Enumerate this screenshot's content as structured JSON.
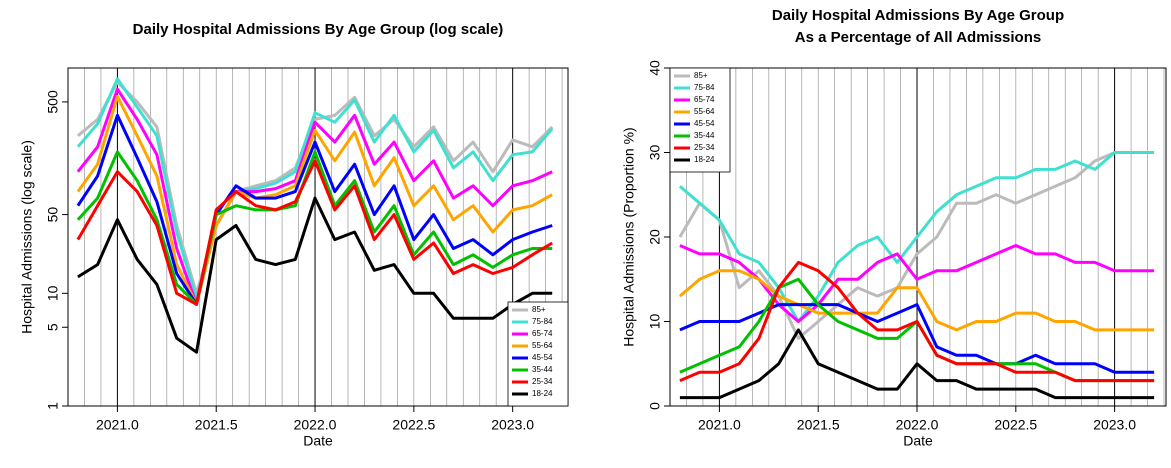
{
  "chart_data": [
    {
      "type": "line",
      "title": "Daily Hospital Admissions By Age Group (log scale)",
      "x_label": "Date",
      "y_label": "Hospital Admissions (log scale)",
      "log_scale": true,
      "grid": true,
      "legend": "bottom-right",
      "xlim": [
        2020.75,
        2023.28
      ],
      "xticks": [
        {
          "value": 2021,
          "label": "2021.0"
        },
        2021.5,
        {
          "value": 2022,
          "label": "2022.0"
        },
        2022.5,
        {
          "value": 2023,
          "label": "2023.0"
        }
      ],
      "ylim": [
        1,
        1000
      ],
      "yticks": [
        1,
        5,
        10,
        50,
        500
      ],
      "x": [
        2020.8,
        2020.9,
        2021.0,
        2021.1,
        2021.2,
        2021.3,
        2021.4,
        2021.5,
        2021.6,
        2021.7,
        2021.8,
        2021.9,
        2022.0,
        2022.1,
        2022.2,
        2022.3,
        2022.4,
        2022.5,
        2022.6,
        2022.7,
        2022.8,
        2022.9,
        2023.0,
        2023.1,
        2023.2
      ],
      "series": [
        {
          "name": "85+",
          "color": "#bbbbbb",
          "values": [
            250,
            350,
            750,
            500,
            300,
            40,
            10,
            40,
            80,
            90,
            100,
            130,
            350,
            380,
            550,
            250,
            350,
            200,
            300,
            150,
            220,
            120,
            230,
            200,
            300
          ]
        },
        {
          "name": "75-84",
          "color": "#40e0d0",
          "values": [
            200,
            320,
            800,
            450,
            250,
            35,
            9,
            40,
            80,
            85,
            95,
            120,
            400,
            330,
            520,
            220,
            380,
            180,
            280,
            130,
            180,
            100,
            170,
            180,
            290
          ]
        },
        {
          "name": "65-74",
          "color": "#ff00ff",
          "values": [
            120,
            200,
            650,
            350,
            170,
            25,
            8,
            40,
            80,
            80,
            85,
            100,
            330,
            220,
            380,
            140,
            220,
            100,
            150,
            70,
            90,
            60,
            90,
            100,
            120
          ]
        },
        {
          "name": "55-64",
          "color": "#ffa500",
          "values": [
            80,
            140,
            560,
            250,
            110,
            18,
            8,
            40,
            80,
            70,
            75,
            90,
            280,
            150,
            270,
            90,
            160,
            60,
            90,
            45,
            60,
            35,
            55,
            60,
            75
          ]
        },
        {
          "name": "45-54",
          "color": "#0000ff",
          "values": [
            60,
            110,
            380,
            160,
            65,
            15,
            8,
            50,
            90,
            70,
            70,
            80,
            220,
            80,
            140,
            50,
            90,
            30,
            50,
            25,
            30,
            22,
            30,
            35,
            40
          ]
        },
        {
          "name": "35-44",
          "color": "#00c000",
          "values": [
            45,
            70,
            180,
            100,
            45,
            12,
            8,
            50,
            60,
            55,
            55,
            60,
            180,
            60,
            100,
            35,
            60,
            22,
            35,
            18,
            22,
            17,
            22,
            25,
            25
          ]
        },
        {
          "name": "25-34",
          "color": "#ff0000",
          "values": [
            30,
            60,
            120,
            80,
            40,
            10,
            8,
            55,
            80,
            60,
            55,
            65,
            150,
            55,
            90,
            30,
            50,
            20,
            28,
            15,
            18,
            15,
            17,
            22,
            28
          ]
        },
        {
          "name": "18-24",
          "color": "#000000",
          "values": [
            14,
            18,
            45,
            20,
            12,
            4,
            3,
            30,
            40,
            20,
            18,
            20,
            70,
            30,
            35,
            16,
            18,
            10,
            10,
            6,
            6,
            6,
            8,
            10,
            10
          ]
        }
      ]
    },
    {
      "type": "line",
      "title": "Daily Hospital Admissions By Age Group",
      "subtitle": "As a Percentage of All Admissions",
      "x_label": "Date",
      "y_label": "Hospital Admissions (Proportion %)",
      "log_scale": false,
      "grid": true,
      "legend": "top-left",
      "xlim": [
        2020.75,
        2023.26
      ],
      "xticks": [
        {
          "value": 2021,
          "label": "2021.0"
        },
        2021.5,
        {
          "value": 2022,
          "label": "2022.0"
        },
        2022.5,
        {
          "value": 2023,
          "label": "2023.0"
        }
      ],
      "ylim": [
        0,
        40
      ],
      "yticks": [
        0,
        10,
        20,
        30,
        40
      ],
      "x": [
        2020.8,
        2020.9,
        2021.0,
        2021.1,
        2021.2,
        2021.3,
        2021.4,
        2021.5,
        2021.6,
        2021.7,
        2021.8,
        2021.9,
        2022.0,
        2022.1,
        2022.2,
        2022.3,
        2022.4,
        2022.5,
        2022.6,
        2022.7,
        2022.8,
        2022.9,
        2023.0,
        2023.1,
        2023.2
      ],
      "series": [
        {
          "name": "85+",
          "color": "#bbbbbb",
          "values": [
            20,
            24,
            22,
            14,
            16,
            13,
            8,
            10,
            12,
            14,
            13,
            14,
            18,
            20,
            24,
            24,
            25,
            24,
            25,
            26,
            27,
            29,
            30,
            30,
            30
          ]
        },
        {
          "name": "75-84",
          "color": "#40e0d0",
          "values": [
            26,
            24,
            22,
            18,
            17,
            14,
            10,
            13,
            17,
            19,
            20,
            17,
            20,
            23,
            25,
            26,
            27,
            27,
            28,
            28,
            29,
            28,
            30,
            30,
            30
          ]
        },
        {
          "name": "65-74",
          "color": "#ff00ff",
          "values": [
            19,
            18,
            18,
            17,
            15,
            12,
            10,
            12,
            15,
            15,
            17,
            18,
            15,
            16,
            16,
            17,
            18,
            19,
            18,
            18,
            17,
            17,
            16,
            16,
            16
          ]
        },
        {
          "name": "55-64",
          "color": "#ffa500",
          "values": [
            13,
            15,
            16,
            16,
            15,
            13,
            12,
            11,
            11,
            11,
            11,
            14,
            14,
            10,
            9,
            10,
            10,
            11,
            11,
            10,
            10,
            9,
            9,
            9,
            9
          ]
        },
        {
          "name": "45-54",
          "color": "#0000ff",
          "values": [
            9,
            10,
            10,
            10,
            11,
            12,
            12,
            12,
            12,
            11,
            10,
            11,
            12,
            7,
            6,
            6,
            5,
            5,
            6,
            5,
            5,
            5,
            4,
            4,
            4
          ]
        },
        {
          "name": "35-44",
          "color": "#00c000",
          "values": [
            4,
            5,
            6,
            7,
            10,
            14,
            15,
            12,
            10,
            9,
            8,
            8,
            10,
            6,
            5,
            5,
            5,
            5,
            5,
            4,
            3,
            3,
            3,
            3,
            3
          ]
        },
        {
          "name": "25-34",
          "color": "#ff0000",
          "values": [
            3,
            4,
            4,
            5,
            8,
            14,
            17,
            16,
            14,
            11,
            9,
            9,
            10,
            6,
            5,
            5,
            5,
            4,
            4,
            4,
            3,
            3,
            3,
            3,
            3
          ]
        },
        {
          "name": "18-24",
          "color": "#000000",
          "values": [
            1,
            1,
            1,
            2,
            3,
            5,
            9,
            5,
            4,
            3,
            2,
            2,
            5,
            3,
            3,
            2,
            2,
            2,
            2,
            1,
            1,
            1,
            1,
            1,
            1
          ]
        }
      ]
    }
  ]
}
